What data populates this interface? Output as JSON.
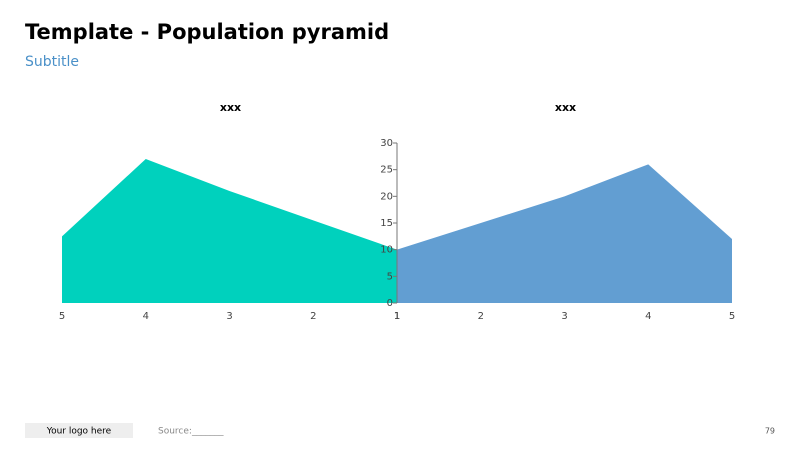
{
  "header": {
    "title": "Template - Population pyramid",
    "subtitle": "Subtitle"
  },
  "chart_data": [
    {
      "type": "area",
      "title": "xxx",
      "categories": [
        "5",
        "4",
        "3",
        "2",
        "1"
      ],
      "values": [
        12.5,
        27,
        21,
        15.5,
        10
      ],
      "color": "#00d1bd",
      "ylim": [
        0,
        30
      ]
    },
    {
      "type": "area",
      "title": "xxx",
      "categories": [
        "1",
        "2",
        "3",
        "4",
        "5"
      ],
      "values": [
        10,
        15,
        20,
        26,
        12
      ],
      "color": "#629ed2",
      "ylim": [
        0,
        30
      ],
      "yticks": [
        0,
        5,
        10,
        15,
        20,
        25,
        30
      ]
    }
  ],
  "footer": {
    "logo": "Your logo here",
    "source": "Source:_______",
    "page": "79"
  }
}
